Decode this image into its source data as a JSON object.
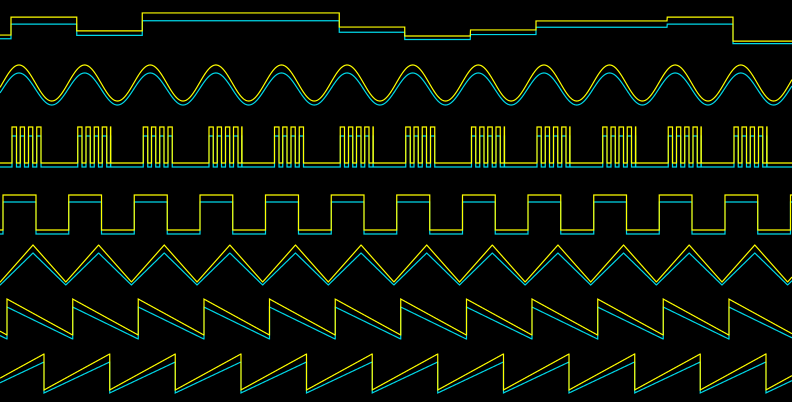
{
  "chart_data": {
    "type": "line",
    "title": "",
    "xlabel": "",
    "ylabel": "",
    "grid": false,
    "legend": "none",
    "periods_visible": 12.07,
    "colors": {
      "background": "#000000",
      "trace_a": "#ffff00",
      "trace_b": "#00d8e8"
    },
    "traces": [
      {
        "shape": "stepped-random",
        "levels": [
          0.28,
          0.84,
          0.41,
          0.97,
          0.97,
          0.97,
          0.53,
          0.25,
          0.44,
          0.72,
          0.72,
          0.84,
          0.09
        ]
      },
      {
        "shape": "sine"
      },
      {
        "shape": "pulse-burst",
        "pulses_per_burst": 4
      },
      {
        "shape": "square",
        "duty_cycle": 0.5
      },
      {
        "shape": "triangle"
      },
      {
        "shape": "sawtooth-falling"
      },
      {
        "shape": "sawtooth-rising"
      }
    ],
    "value_range": [
      0,
      1
    ],
    "trace_b_scale": 0.85
  }
}
